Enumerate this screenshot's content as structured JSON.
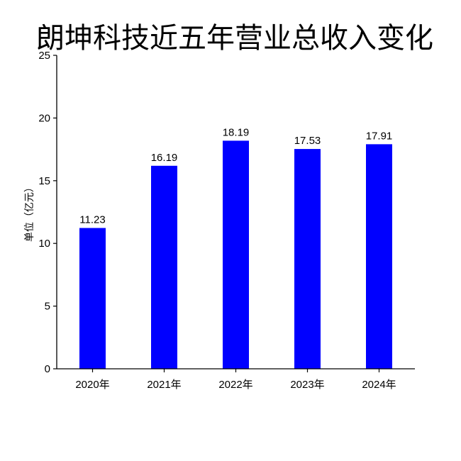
{
  "chart_data": {
    "type": "bar",
    "title": "朗坤科技近五年营业总收入变化",
    "xlabel": "",
    "ylabel": "单位（亿元）",
    "categories": [
      "2020年",
      "2021年",
      "2022年",
      "2023年",
      "2024年"
    ],
    "values": [
      11.23,
      16.19,
      18.19,
      17.53,
      17.91
    ],
    "value_labels": [
      "11.23",
      "16.19",
      "18.19",
      "17.53",
      "17.91"
    ],
    "ylim": [
      0,
      25
    ],
    "yticks": [
      "0",
      "5",
      "10",
      "15",
      "20",
      "25"
    ],
    "grid": false,
    "legend": "none",
    "bar_color": "#0000ff",
    "axis_color": "#000000"
  }
}
